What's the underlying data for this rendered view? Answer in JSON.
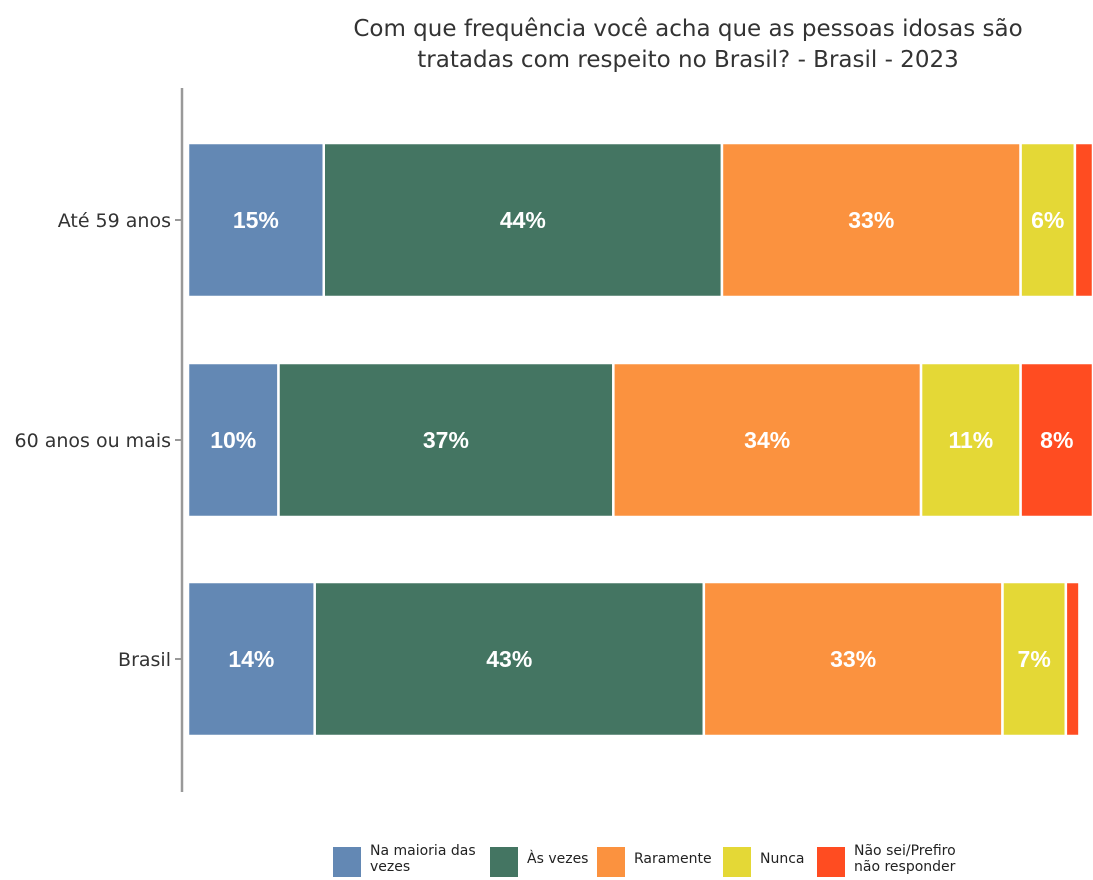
{
  "chart_data": {
    "type": "bar",
    "orientation": "horizontal",
    "stacked": true,
    "title": "Com que frequência você acha que as pessoas idosas são tratadas com respeito no Brasil? - Brasil - 2023",
    "title_lines": [
      "Com que frequência você acha que as pessoas idosas são",
      "tratadas com respeito no Brasil? - Brasil - 2023"
    ],
    "categories": [
      "Até 59 anos",
      "60 anos ou mais",
      "Brasil"
    ],
    "xlim": [
      0,
      100
    ],
    "xlabel": "",
    "ylabel": "",
    "grid": false,
    "legend_position": "bottom",
    "series": [
      {
        "name": "Na maioria das vezes",
        "color": "#6388b4",
        "values": [
          15,
          10,
          14
        ],
        "labels": [
          "15%",
          "10%",
          "14%"
        ]
      },
      {
        "name": "Às vezes",
        "color": "#447562",
        "values": [
          44,
          37,
          43
        ],
        "labels": [
          "44%",
          "37%",
          "43%"
        ]
      },
      {
        "name": "Raramente",
        "color": "#fb923f",
        "values": [
          33,
          34,
          33
        ],
        "labels": [
          "33%",
          "34%",
          "33%"
        ]
      },
      {
        "name": "Nunca",
        "color": "#e4d836",
        "values": [
          6,
          11,
          7
        ],
        "labels": [
          "6%",
          "11%",
          "7%"
        ]
      },
      {
        "name": "Não sei/Prefiro não responder",
        "color": "#ff4c21",
        "values": [
          2,
          8,
          1.5
        ],
        "labels": [
          "",
          "8%",
          ""
        ]
      }
    ]
  },
  "legend": [
    {
      "lines": [
        "Na maioria das",
        "vezes"
      ],
      "color": "#6388b4",
      "icon": "square-swatch"
    },
    {
      "lines": [
        "Às vezes"
      ],
      "color": "#447562",
      "icon": "square-swatch"
    },
    {
      "lines": [
        "Raramente"
      ],
      "color": "#fb923f",
      "icon": "square-swatch"
    },
    {
      "lines": [
        "Nunca"
      ],
      "color": "#e4d836",
      "icon": "square-swatch"
    },
    {
      "lines": [
        "Não sei/Prefiro",
        "não responder"
      ],
      "color": "#ff4c21",
      "icon": "square-swatch"
    }
  ]
}
